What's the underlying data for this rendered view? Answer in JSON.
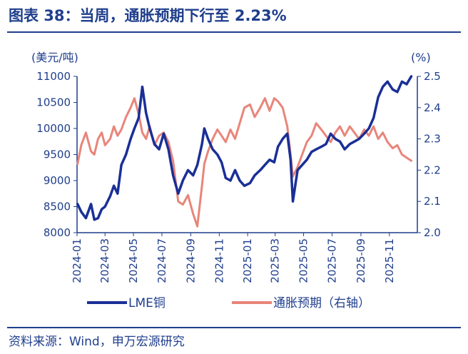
{
  "header": {
    "title": "图表 38：当周，通胀预期下行至 2.23%"
  },
  "footer": {
    "source": "资料来源：Wind，申万宏源研究"
  },
  "colors": {
    "primary": "#1a2f96",
    "secondary": "#e8857a",
    "text": "#1f3e8c"
  },
  "chart_data": {
    "type": "line",
    "title": "",
    "y_left_label": "(美元/吨)",
    "y_right_label": "(%)",
    "y_left_range": [
      8000,
      11000
    ],
    "y_left_ticks": [
      "8000",
      "8500",
      "9000",
      "9500",
      "10000",
      "10500",
      "11000"
    ],
    "y_right_range": [
      2.0,
      2.5
    ],
    "y_right_ticks": [
      "2.0",
      "2.1",
      "2.2",
      "2.3",
      "2.4",
      "2.5"
    ],
    "x_ticks": [
      "2024-01",
      "2024-03",
      "2024-05",
      "2024-07",
      "2024-09",
      "2024-11",
      "2025-01",
      "2025-03",
      "2025-05",
      "2025-07",
      "2025-09",
      "2025-11"
    ],
    "x_range": [
      "2024-01-01",
      "2025-12-31"
    ],
    "grid": false,
    "legend_position": "bottom",
    "series": [
      {
        "name": "LME铜",
        "axis": "left",
        "color": "#1a2f96",
        "points": [
          [
            "2024-01-02",
            8550
          ],
          [
            "2024-01-10",
            8400
          ],
          [
            "2024-01-20",
            8280
          ],
          [
            "2024-01-31",
            8550
          ],
          [
            "2024-02-07",
            8250
          ],
          [
            "2024-02-15",
            8280
          ],
          [
            "2024-02-23",
            8450
          ],
          [
            "2024-03-01",
            8500
          ],
          [
            "2024-03-12",
            8700
          ],
          [
            "2024-03-20",
            8900
          ],
          [
            "2024-03-28",
            8750
          ],
          [
            "2024-04-05",
            9300
          ],
          [
            "2024-04-15",
            9500
          ],
          [
            "2024-04-25",
            9800
          ],
          [
            "2024-05-03",
            10000
          ],
          [
            "2024-05-12",
            10200
          ],
          [
            "2024-05-20",
            10800
          ],
          [
            "2024-05-28",
            10300
          ],
          [
            "2024-06-05",
            10000
          ],
          [
            "2024-06-15",
            9700
          ],
          [
            "2024-06-25",
            9600
          ],
          [
            "2024-07-05",
            9900
          ],
          [
            "2024-07-15",
            9600
          ],
          [
            "2024-07-25",
            9100
          ],
          [
            "2024-08-05",
            8750
          ],
          [
            "2024-08-15",
            9000
          ],
          [
            "2024-08-26",
            9200
          ],
          [
            "2024-09-06",
            9100
          ],
          [
            "2024-09-15",
            9300
          ],
          [
            "2024-09-25",
            9700
          ],
          [
            "2024-09-30",
            10000
          ],
          [
            "2024-10-08",
            9800
          ],
          [
            "2024-10-18",
            9600
          ],
          [
            "2024-10-28",
            9500
          ],
          [
            "2024-11-06",
            9350
          ],
          [
            "2024-11-15",
            9050
          ],
          [
            "2024-11-25",
            9000
          ],
          [
            "2024-12-05",
            9200
          ],
          [
            "2024-12-15",
            9000
          ],
          [
            "2024-12-25",
            8900
          ],
          [
            "2025-01-06",
            8950
          ],
          [
            "2025-01-16",
            9100
          ],
          [
            "2025-01-28",
            9200
          ],
          [
            "2025-02-07",
            9300
          ],
          [
            "2025-02-17",
            9400
          ],
          [
            "2025-02-27",
            9350
          ],
          [
            "2025-03-07",
            9650
          ],
          [
            "2025-03-17",
            9800
          ],
          [
            "2025-03-27",
            9900
          ],
          [
            "2025-04-03",
            9400
          ],
          [
            "2025-04-08",
            8600
          ],
          [
            "2025-04-18",
            9200
          ],
          [
            "2025-04-28",
            9300
          ],
          [
            "2025-05-08",
            9400
          ],
          [
            "2025-05-18",
            9550
          ],
          [
            "2025-05-28",
            9600
          ],
          [
            "2025-06-08",
            9650
          ],
          [
            "2025-06-18",
            9700
          ],
          [
            "2025-06-28",
            9900
          ],
          [
            "2025-07-08",
            9800
          ],
          [
            "2025-07-18",
            9750
          ],
          [
            "2025-07-28",
            9600
          ],
          [
            "2025-08-08",
            9700
          ],
          [
            "2025-08-18",
            9750
          ],
          [
            "2025-08-28",
            9800
          ],
          [
            "2025-09-08",
            9900
          ],
          [
            "2025-09-18",
            10000
          ],
          [
            "2025-09-28",
            10200
          ],
          [
            "2025-10-08",
            10600
          ],
          [
            "2025-10-18",
            10800
          ],
          [
            "2025-10-28",
            10900
          ],
          [
            "2025-11-08",
            10750
          ],
          [
            "2025-11-18",
            10700
          ],
          [
            "2025-11-28",
            10900
          ],
          [
            "2025-12-08",
            10850
          ],
          [
            "2025-12-18",
            11000
          ]
        ]
      },
      {
        "name": "通胀预期（右轴）",
        "axis": "right",
        "color": "#e8857a",
        "points": [
          [
            "2024-01-02",
            2.22
          ],
          [
            "2024-01-10",
            2.28
          ],
          [
            "2024-01-20",
            2.32
          ],
          [
            "2024-01-31",
            2.26
          ],
          [
            "2024-02-07",
            2.25
          ],
          [
            "2024-02-15",
            2.3
          ],
          [
            "2024-02-23",
            2.32
          ],
          [
            "2024-03-01",
            2.28
          ],
          [
            "2024-03-12",
            2.3
          ],
          [
            "2024-03-20",
            2.34
          ],
          [
            "2024-03-28",
            2.31
          ],
          [
            "2024-04-05",
            2.33
          ],
          [
            "2024-04-15",
            2.37
          ],
          [
            "2024-04-25",
            2.4
          ],
          [
            "2024-05-03",
            2.43
          ],
          [
            "2024-05-12",
            2.38
          ],
          [
            "2024-05-20",
            2.32
          ],
          [
            "2024-05-28",
            2.3
          ],
          [
            "2024-06-05",
            2.34
          ],
          [
            "2024-06-15",
            2.28
          ],
          [
            "2024-06-25",
            2.31
          ],
          [
            "2024-07-05",
            2.32
          ],
          [
            "2024-07-15",
            2.29
          ],
          [
            "2024-07-25",
            2.23
          ],
          [
            "2024-08-05",
            2.1
          ],
          [
            "2024-08-15",
            2.09
          ],
          [
            "2024-08-26",
            2.12
          ],
          [
            "2024-09-06",
            2.06
          ],
          [
            "2024-09-15",
            2.02
          ],
          [
            "2024-09-25",
            2.15
          ],
          [
            "2024-09-30",
            2.22
          ],
          [
            "2024-10-08",
            2.26
          ],
          [
            "2024-10-18",
            2.3
          ],
          [
            "2024-10-28",
            2.33
          ],
          [
            "2024-11-06",
            2.31
          ],
          [
            "2024-11-15",
            2.29
          ],
          [
            "2024-11-25",
            2.33
          ],
          [
            "2024-12-05",
            2.3
          ],
          [
            "2024-12-15",
            2.35
          ],
          [
            "2024-12-25",
            2.4
          ],
          [
            "2025-01-06",
            2.41
          ],
          [
            "2025-01-16",
            2.37
          ],
          [
            "2025-01-28",
            2.4
          ],
          [
            "2025-02-07",
            2.43
          ],
          [
            "2025-02-17",
            2.39
          ],
          [
            "2025-02-27",
            2.43
          ],
          [
            "2025-03-07",
            2.42
          ],
          [
            "2025-03-17",
            2.4
          ],
          [
            "2025-03-27",
            2.34
          ],
          [
            "2025-04-03",
            2.25
          ],
          [
            "2025-04-08",
            2.18
          ],
          [
            "2025-04-18",
            2.21
          ],
          [
            "2025-04-28",
            2.25
          ],
          [
            "2025-05-08",
            2.29
          ],
          [
            "2025-05-18",
            2.31
          ],
          [
            "2025-05-28",
            2.35
          ],
          [
            "2025-06-08",
            2.33
          ],
          [
            "2025-06-18",
            2.31
          ],
          [
            "2025-06-28",
            2.29
          ],
          [
            "2025-07-08",
            2.32
          ],
          [
            "2025-07-18",
            2.34
          ],
          [
            "2025-07-28",
            2.31
          ],
          [
            "2025-08-08",
            2.34
          ],
          [
            "2025-08-18",
            2.32
          ],
          [
            "2025-08-28",
            2.3
          ],
          [
            "2025-09-08",
            2.33
          ],
          [
            "2025-09-18",
            2.31
          ],
          [
            "2025-09-28",
            2.34
          ],
          [
            "2025-10-08",
            2.3
          ],
          [
            "2025-10-18",
            2.32
          ],
          [
            "2025-10-28",
            2.29
          ],
          [
            "2025-11-08",
            2.27
          ],
          [
            "2025-11-18",
            2.28
          ],
          [
            "2025-11-28",
            2.25
          ],
          [
            "2025-12-08",
            2.24
          ],
          [
            "2025-12-18",
            2.23
          ]
        ]
      }
    ]
  }
}
